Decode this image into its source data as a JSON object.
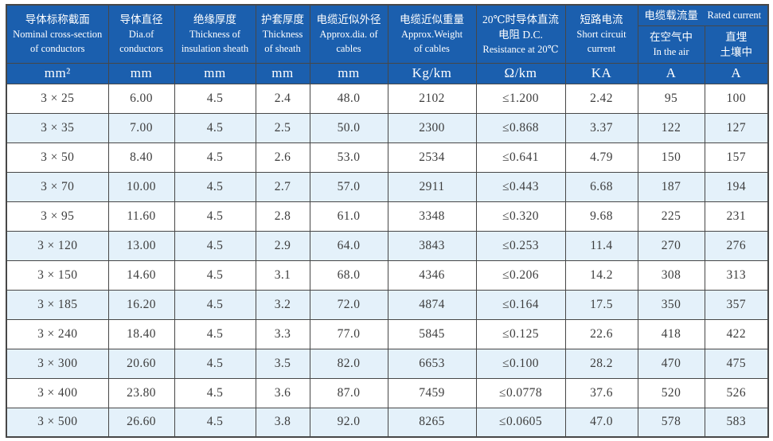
{
  "colors": {
    "header_bg": "#1b5fae",
    "header_text": "#ffffff",
    "row_alt_bg": "#e4f1fa",
    "row_bg": "#ffffff",
    "border": "#474747",
    "cell_text": "#3d3d3d"
  },
  "chart_data": {
    "type": "table",
    "title": "",
    "layout": {
      "grid": "on",
      "zebra_striping": true,
      "column_count": 10,
      "row_count": 12
    },
    "header": {
      "cols": [
        {
          "zh": "导体标称截面",
          "en": "Nominal cross-section\nof conductors",
          "unit": "mm²"
        },
        {
          "zh": "导体直径",
          "en": "Dia.of\nconductors",
          "unit": "mm"
        },
        {
          "zh": "绝缘厚度",
          "en": "Thickness of\ninsulation sheath",
          "unit": "mm"
        },
        {
          "zh": "护套厚度",
          "en": "Thickness\nof sheath",
          "unit": "mm"
        },
        {
          "zh": "电缆近似外径",
          "en": "Approx.dia. of\ncables",
          "unit": "mm"
        },
        {
          "zh": "电缆近似重量",
          "en": "Approx.Weight\nof cables",
          "unit": "Kg/km"
        },
        {
          "zh": "20℃时导体直流\n电阻 D.C.",
          "en": "Resistance at 20℃",
          "unit": "Ω/km"
        },
        {
          "zh": "短路电流",
          "en": "Short circuit\ncurrent",
          "unit": "KA"
        }
      ],
      "group": {
        "zh": "电缆载流量",
        "en": "Rated current"
      },
      "subcols": [
        {
          "zh": "在空气中",
          "en": "In the air",
          "unit": "A"
        },
        {
          "zh": "直埋\n土壤中",
          "en": "",
          "unit": "A"
        }
      ]
    },
    "rows": [
      [
        "3 × 25",
        "6.00",
        "4.5",
        "2.4",
        "48.0",
        "2102",
        "≤1.200",
        "2.42",
        "95",
        "100"
      ],
      [
        "3 × 35",
        "7.00",
        "4.5",
        "2.5",
        "50.0",
        "2300",
        "≤0.868",
        "3.37",
        "122",
        "127"
      ],
      [
        "3 × 50",
        "8.40",
        "4.5",
        "2.6",
        "53.0",
        "2534",
        "≤0.641",
        "4.79",
        "150",
        "157"
      ],
      [
        "3 × 70",
        "10.00",
        "4.5",
        "2.7",
        "57.0",
        "2911",
        "≤0.443",
        "6.68",
        "187",
        "194"
      ],
      [
        "3 × 95",
        "11.60",
        "4.5",
        "2.8",
        "61.0",
        "3348",
        "≤0.320",
        "9.68",
        "225",
        "231"
      ],
      [
        "3 × 120",
        "13.00",
        "4.5",
        "2.9",
        "64.0",
        "3843",
        "≤0.253",
        "11.4",
        "270",
        "276"
      ],
      [
        "3 × 150",
        "14.60",
        "4.5",
        "3.1",
        "68.0",
        "4346",
        "≤0.206",
        "14.2",
        "308",
        "313"
      ],
      [
        "3 × 185",
        "16.20",
        "4.5",
        "3.2",
        "72.0",
        "4874",
        "≤0.164",
        "17.5",
        "350",
        "357"
      ],
      [
        "3 × 240",
        "18.40",
        "4.5",
        "3.3",
        "77.0",
        "5845",
        "≤0.125",
        "22.6",
        "418",
        "422"
      ],
      [
        "3 × 300",
        "20.60",
        "4.5",
        "3.5",
        "82.0",
        "6653",
        "≤0.100",
        "28.2",
        "470",
        "475"
      ],
      [
        "3 × 400",
        "23.80",
        "4.5",
        "3.6",
        "87.0",
        "7459",
        "≤0.0778",
        "37.6",
        "520",
        "526"
      ],
      [
        "3 × 500",
        "26.60",
        "4.5",
        "3.8",
        "92.0",
        "8265",
        "≤0.0605",
        "47.0",
        "578",
        "583"
      ]
    ]
  }
}
